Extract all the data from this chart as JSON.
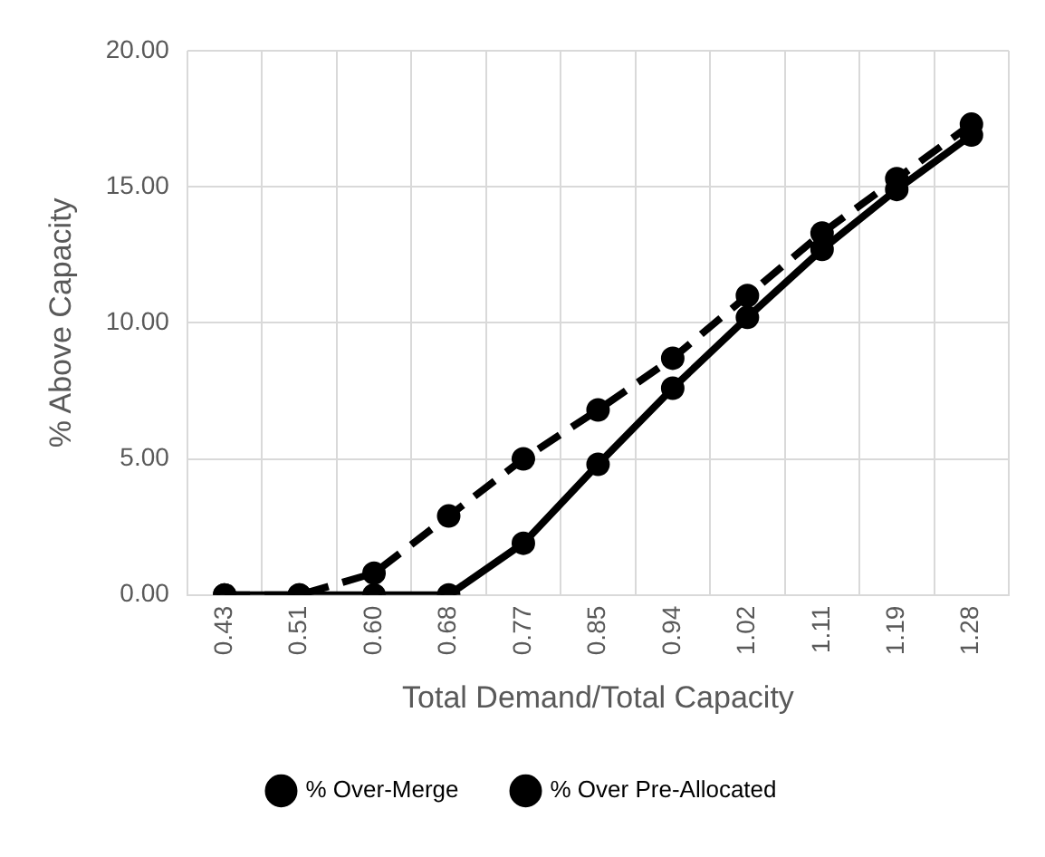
{
  "chart_data": {
    "type": "line",
    "xlabel": "Total Demand/Total Capacity",
    "ylabel": "% Above Capacity",
    "categories": [
      "0.43",
      "0.51",
      "0.60",
      "0.68",
      "0.77",
      "0.85",
      "0.94",
      "1.02",
      "1.11",
      "1.19",
      "1.28"
    ],
    "series": [
      {
        "name": "% Over-Merge",
        "color": "#000000",
        "line_style": "solid",
        "values": [
          0,
          0,
          0,
          0,
          1.9,
          4.8,
          7.6,
          10.2,
          12.7,
          14.9,
          16.9
        ]
      },
      {
        "name": "% Over Pre-Allocated",
        "color": "#000000",
        "line_style": "dashed",
        "values": [
          0,
          0,
          0.8,
          2.9,
          5.0,
          6.8,
          8.7,
          11.0,
          13.3,
          15.3,
          17.3
        ]
      }
    ],
    "ylim": [
      0,
      20
    ],
    "yticks": [
      {
        "value": 0,
        "label": "0.00"
      },
      {
        "value": 5,
        "label": "5.00"
      },
      {
        "value": 10,
        "label": "10.00"
      },
      {
        "value": 15,
        "label": "15.00"
      },
      {
        "value": 20,
        "label": "20.00"
      }
    ],
    "grid": true,
    "legend": "bottom",
    "marker": "circle"
  }
}
